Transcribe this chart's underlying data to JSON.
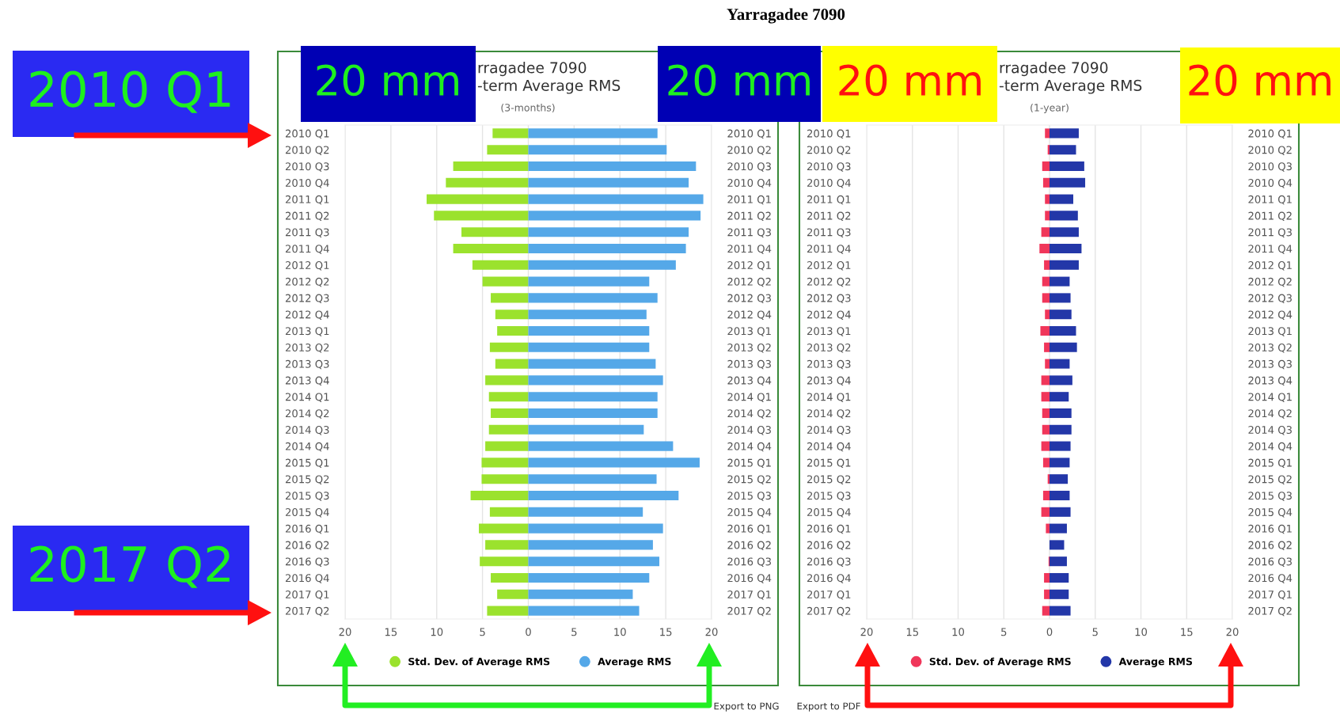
{
  "chart_data": [
    {
      "type": "bar",
      "orientation": "horizontal",
      "stacked": true,
      "title": "rragadee 7090\n-term Average RMS",
      "subtitle": "(3-months)",
      "categories": [
        "2010 Q1",
        "2010 Q2",
        "2010 Q3",
        "2010 Q4",
        "2011 Q1",
        "2011 Q2",
        "2011 Q3",
        "2011 Q4",
        "2012 Q1",
        "2012 Q2",
        "2012 Q3",
        "2012 Q4",
        "2013 Q1",
        "2013 Q2",
        "2013 Q3",
        "2013 Q4",
        "2014 Q1",
        "2014 Q2",
        "2014 Q3",
        "2014 Q4",
        "2015 Q1",
        "2015 Q2",
        "2015 Q3",
        "2015 Q4",
        "2016 Q1",
        "2016 Q2",
        "2016 Q3",
        "2016 Q4",
        "2017 Q1",
        "2017 Q2"
      ],
      "series": [
        {
          "name": "Std. Dev. of Average RMS",
          "color": "#9be22d",
          "values": [
            -3.9,
            -4.5,
            -8.2,
            -9.0,
            -11.1,
            -10.3,
            -7.3,
            -8.2,
            -6.1,
            -5.0,
            -4.1,
            -3.6,
            -3.4,
            -4.2,
            -3.6,
            -4.7,
            -4.3,
            -4.1,
            -4.3,
            -4.7,
            -5.1,
            -5.1,
            -6.3,
            -4.2,
            -5.4,
            -4.7,
            -5.3,
            -4.1,
            -3.4,
            -4.5
          ]
        },
        {
          "name": "Average RMS",
          "color": "#55a8e8",
          "values": [
            14.1,
            15.1,
            18.3,
            17.5,
            19.1,
            18.8,
            17.5,
            17.2,
            16.1,
            13.2,
            14.1,
            12.9,
            13.2,
            13.2,
            13.9,
            14.7,
            14.1,
            14.1,
            12.6,
            15.8,
            18.7,
            14.0,
            16.4,
            12.5,
            14.7,
            13.6,
            14.3,
            13.2,
            11.4,
            12.1
          ]
        }
      ],
      "xlim": [
        -20,
        20
      ],
      "xticks": [
        {
          "value": -20,
          "label": "20"
        },
        {
          "value": -15,
          "label": "15"
        },
        {
          "value": -10,
          "label": "10"
        },
        {
          "value": -5,
          "label": "5"
        },
        0,
        5,
        10,
        15,
        20
      ],
      "grid": "x",
      "legend": "bottom",
      "annotations": [
        "Yarragadee 7090",
        "2010 Q1",
        "2017 Q2",
        "20 mm",
        "20 mm",
        "Export to PNG"
      ]
    },
    {
      "type": "bar",
      "orientation": "horizontal",
      "stacked": true,
      "title": "rragadee 7090\n-term Average RMS",
      "subtitle": "(1-year)",
      "categories": [
        "2010 Q1",
        "2010 Q2",
        "2010 Q3",
        "2010 Q4",
        "2011 Q1",
        "2011 Q2",
        "2011 Q3",
        "2011 Q4",
        "2012 Q1",
        "2012 Q2",
        "2012 Q3",
        "2012 Q4",
        "2013 Q1",
        "2013 Q2",
        "2013 Q3",
        "2013 Q4",
        "2014 Q1",
        "2014 Q2",
        "2014 Q3",
        "2014 Q4",
        "2015 Q1",
        "2015 Q2",
        "2015 Q3",
        "2015 Q4",
        "2016 Q1",
        "2016 Q2",
        "2016 Q3",
        "2016 Q4",
        "2017 Q1",
        "2017 Q2"
      ],
      "series": [
        {
          "name": "Std. Dev. of Average RMS",
          "color": "#f0365a",
          "values": [
            -0.5,
            -0.2,
            -0.8,
            -0.7,
            -0.5,
            -0.5,
            -0.9,
            -1.1,
            -0.6,
            -0.8,
            -0.8,
            -0.5,
            -1.0,
            -0.6,
            -0.5,
            -0.9,
            -0.9,
            -0.8,
            -0.8,
            -0.9,
            -0.7,
            -0.2,
            -0.7,
            -0.9,
            -0.4,
            null,
            -0.1,
            -0.6,
            -0.6,
            -0.8
          ]
        },
        {
          "name": "Average RMS",
          "color": "#2337a8",
          "values": [
            3.2,
            2.9,
            3.8,
            3.9,
            2.6,
            3.1,
            3.2,
            3.5,
            3.2,
            2.2,
            2.3,
            2.4,
            2.9,
            3.0,
            2.2,
            2.5,
            2.1,
            2.4,
            2.4,
            2.3,
            2.2,
            2.0,
            2.2,
            2.3,
            1.9,
            1.6,
            1.9,
            2.1,
            2.1,
            2.3
          ]
        }
      ],
      "xlim": [
        -20,
        20
      ],
      "xticks": [
        {
          "value": -20,
          "label": "20"
        },
        {
          "value": -15,
          "label": "15"
        },
        {
          "value": -10,
          "label": "10"
        },
        {
          "value": -5,
          "label": "5"
        },
        0,
        5,
        10,
        15,
        20
      ],
      "grid": "x",
      "legend": "bottom",
      "annotations": [
        "20 mm",
        "20 mm",
        "Export to PDF"
      ]
    }
  ]
}
